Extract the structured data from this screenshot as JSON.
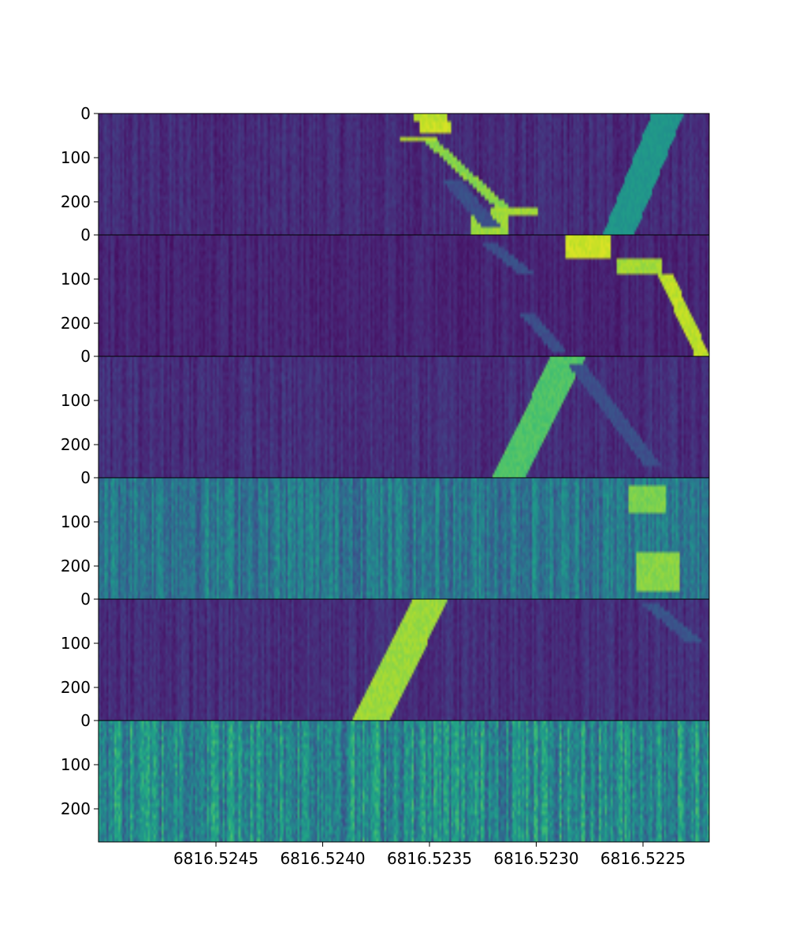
{
  "chart_data": {
    "type": "heatmap",
    "title": "",
    "xlabel": "",
    "ylabel": "",
    "colormap": "viridis",
    "x_axis": {
      "direction": "decreasing",
      "xlim": [
        6816.52505,
        6816.52219
      ],
      "ticks": [
        6816.5245,
        6816.524,
        6816.5235,
        6816.523,
        6816.5225
      ],
      "tick_labels": [
        "6816.5245",
        "6816.5240",
        "6816.5235",
        "6816.5230",
        "6816.5225"
      ]
    },
    "y_axis": {
      "ylim": [
        275,
        0
      ],
      "ticks": [
        0,
        100,
        200
      ],
      "tick_labels": [
        "0",
        "100",
        "200"
      ]
    },
    "panels": [
      {
        "background": 0.12,
        "noise": 0.06,
        "features": [
          {
            "kind": "band",
            "x_top_start": 6816.52246,
            "x_top_end": 6816.52231,
            "x_bottom_start": 6816.52269,
            "x_bottom_end": 6816.52254,
            "value": 0.52
          },
          {
            "kind": "blob",
            "x_start": 6816.52357,
            "x_end": 6816.52342,
            "y_start": 0,
            "y_end": 20,
            "value": 0.9
          },
          {
            "kind": "blob",
            "x_start": 6816.52355,
            "x_end": 6816.5234,
            "y_start": 20,
            "y_end": 45,
            "value": 0.92
          },
          {
            "kind": "blob",
            "x_start": 6816.52364,
            "x_end": 6816.52346,
            "y_start": 50,
            "y_end": 62,
            "value": 0.88
          },
          {
            "kind": "step",
            "x_start": 6816.5235,
            "x_end": 6816.52314,
            "y_start": 60,
            "y_end": 220,
            "width": 6.6e-05,
            "value": 0.82
          },
          {
            "kind": "blob",
            "x_start": 6816.52321,
            "x_end": 6816.52299,
            "y_start": 210,
            "y_end": 228,
            "value": 0.86
          },
          {
            "kind": "blob",
            "x_start": 6816.52331,
            "x_end": 6816.52313,
            "y_start": 225,
            "y_end": 275,
            "value": 0.85
          },
          {
            "kind": "faint",
            "x_start": 6816.5234,
            "x_end": 6816.5232,
            "y_start": 150,
            "y_end": 260,
            "width": 9e-05,
            "value": 0.24
          }
        ]
      },
      {
        "background": 0.1,
        "noise": 0.05,
        "features": [
          {
            "kind": "blob",
            "x_start": 6816.52286,
            "x_end": 6816.52265,
            "y_start": 0,
            "y_end": 50,
            "value": 0.92
          },
          {
            "kind": "blob",
            "x_start": 6816.52262,
            "x_end": 6816.52241,
            "y_start": 52,
            "y_end": 85,
            "value": 0.86
          },
          {
            "kind": "step",
            "x_start": 6816.5224,
            "x_end": 6816.52222,
            "y_start": 85,
            "y_end": 275,
            "width": 7e-05,
            "value": 0.9
          },
          {
            "kind": "faint",
            "x_start": 6816.52322,
            "x_end": 6816.52305,
            "y_start": 20,
            "y_end": 85,
            "width": 8e-05,
            "value": 0.24
          },
          {
            "kind": "faint",
            "x_start": 6816.52304,
            "x_end": 6816.52288,
            "y_start": 180,
            "y_end": 270,
            "width": 7e-05,
            "value": 0.24
          }
        ]
      },
      {
        "background": 0.13,
        "noise": 0.06,
        "features": [
          {
            "kind": "band",
            "x_top_start": 6816.52293,
            "x_top_end": 6816.52277,
            "x_bottom_start": 6816.52321,
            "x_bottom_end": 6816.52305,
            "value": 0.72
          },
          {
            "kind": "faint",
            "x_start": 6816.52281,
            "x_end": 6816.52245,
            "y_start": 20,
            "y_end": 250,
            "width": 8e-05,
            "value": 0.24
          }
        ]
      },
      {
        "background": 0.4,
        "noise": 0.14,
        "features": [
          {
            "kind": "blob",
            "x_start": 6816.52257,
            "x_end": 6816.52239,
            "y_start": 15,
            "y_end": 80,
            "value": 0.8
          },
          {
            "kind": "blob",
            "x_start": 6816.52253,
            "x_end": 6816.52233,
            "y_start": 170,
            "y_end": 255,
            "value": 0.82
          }
        ]
      },
      {
        "background": 0.13,
        "noise": 0.06,
        "features": [
          {
            "kind": "band",
            "x_top_start": 6816.52358,
            "x_top_end": 6816.52341,
            "x_bottom_start": 6816.52386,
            "x_bottom_end": 6816.52369,
            "value": 0.85
          },
          {
            "kind": "faint",
            "x_start": 6816.52247,
            "x_end": 6816.52225,
            "y_start": 10,
            "y_end": 100,
            "width": 8e-05,
            "value": 0.26
          }
        ]
      },
      {
        "background": 0.48,
        "noise": 0.2,
        "features": []
      }
    ]
  }
}
